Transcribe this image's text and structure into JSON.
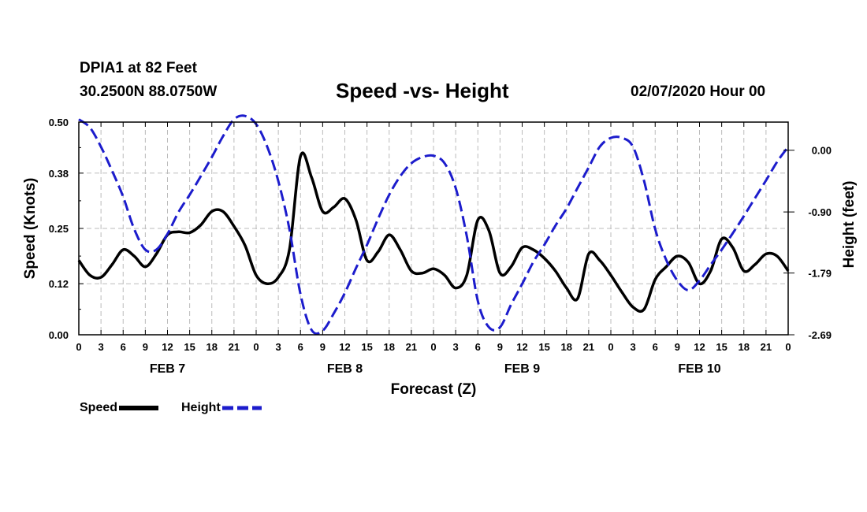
{
  "header": {
    "station": "DPIA1 at 82 Feet",
    "coords": "30.2500N 88.0750W",
    "title": "Speed -vs- Height",
    "datestamp": "02/07/2020 Hour 00"
  },
  "legend": {
    "speed_label": "Speed",
    "height_label": "Height"
  },
  "colors": {
    "speed": "#000000",
    "height": "#1c1ccc",
    "grid": "#bbbbbb"
  },
  "chart_data": {
    "type": "line",
    "title": "Speed -vs- Height",
    "xlabel": "Forecast (Z)",
    "ylabel": "Speed (Knots)",
    "y2label": "Height (feet)",
    "xlim": [
      0,
      96
    ],
    "ylim": [
      0.0,
      0.5
    ],
    "y2lim": [
      -2.69,
      0.41
    ],
    "grid": true,
    "legend_position": "bottom-left",
    "yticks": [
      "0.00",
      "0.12",
      "0.25",
      "0.38",
      "0.50"
    ],
    "y2ticks": [
      "-2.69",
      "-1.79",
      "-0.90",
      "0.00"
    ],
    "y2tick_values": [
      -2.69,
      -1.79,
      -0.9,
      0.0
    ],
    "xticks": [
      0,
      3,
      6,
      9,
      12,
      15,
      18,
      21,
      24,
      27,
      30,
      33,
      36,
      39,
      42,
      45,
      48,
      51,
      54,
      57,
      60,
      63,
      66,
      69,
      72,
      75,
      78,
      81,
      84,
      87,
      90,
      93,
      96
    ],
    "xtick_labels": [
      "0",
      "3",
      "6",
      "9",
      "12",
      "15",
      "18",
      "21",
      "0",
      "3",
      "6",
      "9",
      "12",
      "15",
      "18",
      "21",
      "0",
      "3",
      "6",
      "9",
      "12",
      "15",
      "18",
      "21",
      "0",
      "3",
      "6",
      "9",
      "12",
      "15",
      "18",
      "21",
      "0"
    ],
    "day_labels": [
      {
        "label": "FEB 7",
        "x": 12
      },
      {
        "label": "FEB 8",
        "x": 36
      },
      {
        "label": "FEB 9",
        "x": 60
      },
      {
        "label": "FEB 10",
        "x": 84
      }
    ],
    "series": [
      {
        "name": "Speed",
        "axis": "left",
        "style": "solid",
        "x": [
          0,
          1.5,
          3,
          4.5,
          6,
          7.5,
          9,
          10.5,
          12,
          13.5,
          15,
          16.5,
          18,
          19.5,
          21,
          22.5,
          24,
          25.5,
          27,
          28.5,
          30,
          31.5,
          33,
          34.5,
          36,
          37.5,
          39,
          40.5,
          42,
          43.5,
          45,
          46.5,
          48,
          49.5,
          51,
          52.5,
          54,
          55.5,
          57,
          58.5,
          60,
          61.5,
          63,
          64.5,
          66,
          67.5,
          69,
          70.5,
          72,
          73.5,
          75,
          76.5,
          78,
          79.5,
          81,
          82.5,
          84,
          85.5,
          87,
          88.5,
          90,
          91.5,
          93,
          94.5,
          96
        ],
        "values": [
          0.175,
          0.14,
          0.135,
          0.165,
          0.2,
          0.185,
          0.16,
          0.19,
          0.235,
          0.242,
          0.24,
          0.258,
          0.29,
          0.29,
          0.255,
          0.21,
          0.14,
          0.12,
          0.135,
          0.2,
          0.42,
          0.37,
          0.29,
          0.3,
          0.32,
          0.27,
          0.175,
          0.195,
          0.235,
          0.2,
          0.15,
          0.145,
          0.155,
          0.14,
          0.11,
          0.14,
          0.27,
          0.245,
          0.145,
          0.16,
          0.205,
          0.2,
          0.18,
          0.15,
          0.11,
          0.085,
          0.19,
          0.175,
          0.14,
          0.1,
          0.065,
          0.06,
          0.13,
          0.16,
          0.185,
          0.17,
          0.12,
          0.15,
          0.225,
          0.205,
          0.15,
          0.165,
          0.19,
          0.185,
          0.15
        ]
      },
      {
        "name": "Height",
        "axis": "right",
        "style": "dashed",
        "x": [
          0,
          1.5,
          3,
          4.5,
          6,
          7.5,
          9,
          10.5,
          12,
          13.5,
          15,
          16.5,
          18,
          19.5,
          21,
          22.5,
          24,
          25.5,
          27,
          28.5,
          30,
          31.5,
          33,
          34.5,
          36,
          37.5,
          39,
          40.5,
          42,
          43.5,
          45,
          46.5,
          48,
          49.5,
          51,
          52.5,
          54,
          55.5,
          57,
          58.5,
          60,
          61.5,
          63,
          64.5,
          66,
          67.5,
          69,
          70.5,
          72,
          73.5,
          75,
          76.5,
          78,
          79.5,
          81,
          82.5,
          84,
          85.5,
          87,
          88.5,
          90,
          91.5,
          93,
          94.5,
          96
        ],
        "values": [
          0.45,
          0.33,
          0.05,
          -0.3,
          -0.68,
          -1.15,
          -1.45,
          -1.45,
          -1.22,
          -0.9,
          -0.65,
          -0.38,
          -0.1,
          0.2,
          0.45,
          0.5,
          0.38,
          0.05,
          -0.45,
          -1.15,
          -2.1,
          -2.62,
          -2.63,
          -2.38,
          -2.08,
          -1.72,
          -1.38,
          -1.0,
          -0.65,
          -0.38,
          -0.19,
          -0.1,
          -0.08,
          -0.19,
          -0.55,
          -1.25,
          -2.2,
          -2.58,
          -2.58,
          -2.25,
          -1.95,
          -1.63,
          -1.38,
          -1.1,
          -0.85,
          -0.55,
          -0.25,
          0.05,
          0.18,
          0.18,
          0.05,
          -0.45,
          -1.15,
          -1.6,
          -1.9,
          -2.04,
          -1.9,
          -1.67,
          -1.45,
          -1.21,
          -0.96,
          -0.7,
          -0.44,
          -0.17,
          0.05
        ]
      }
    ]
  }
}
